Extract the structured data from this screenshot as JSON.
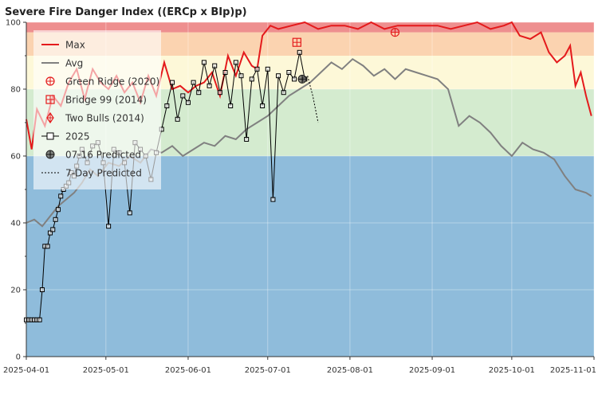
{
  "chart_data": {
    "type": "line",
    "title": "Severe Fire Danger Index ((ERCp x BIp)p)",
    "xlabel": "",
    "ylabel": "",
    "ylim": [
      0,
      100
    ],
    "x_range": [
      "2025-04-01",
      "2025-11-01"
    ],
    "x_ticks": [
      "2025-04-01",
      "2025-05-01",
      "2025-06-01",
      "2025-07-01",
      "2025-08-01",
      "2025-09-01",
      "2025-10-01",
      "2025-11-01"
    ],
    "y_ticks": [
      0,
      20,
      40,
      60,
      80,
      100
    ],
    "grid": true,
    "legend_placement": "top-left",
    "bands": [
      {
        "from": 0,
        "to": 60,
        "color": "#8fbcdb"
      },
      {
        "from": 60,
        "to": 80,
        "color": "#d4ebcf"
      },
      {
        "from": 80,
        "to": 90,
        "color": "#fdf8d8"
      },
      {
        "from": 90,
        "to": 97,
        "color": "#fbd3b0"
      },
      {
        "from": 97,
        "to": 100,
        "color": "#ee8f8f"
      }
    ],
    "legend": [
      "Max",
      "Avg",
      "Green Ridge (2020)",
      "Bridge 99 (2014)",
      "Two Bulls (2014)",
      "2025",
      "07-16 Predicted",
      "7-Day Predicted"
    ],
    "series": [
      {
        "name": "Max",
        "color": "#e41a1c",
        "x": [
          "2025-04-01",
          "2025-04-03",
          "2025-04-05",
          "2025-04-08",
          "2025-04-11",
          "2025-04-14",
          "2025-04-17",
          "2025-04-20",
          "2025-04-23",
          "2025-04-26",
          "2025-04-29",
          "2025-05-02",
          "2025-05-05",
          "2025-05-08",
          "2025-05-11",
          "2025-05-14",
          "2025-05-17",
          "2025-05-20",
          "2025-05-23",
          "2025-05-26",
          "2025-05-29",
          "2025-06-01",
          "2025-06-04",
          "2025-06-07",
          "2025-06-10",
          "2025-06-13",
          "2025-06-16",
          "2025-06-19",
          "2025-06-22",
          "2025-06-25",
          "2025-06-27",
          "2025-06-29",
          "2025-07-02",
          "2025-07-05",
          "2025-07-10",
          "2025-07-15",
          "2025-07-20",
          "2025-07-25",
          "2025-07-30",
          "2025-08-04",
          "2025-08-09",
          "2025-08-14",
          "2025-08-19",
          "2025-08-24",
          "2025-08-29",
          "2025-09-03",
          "2025-09-08",
          "2025-09-13",
          "2025-09-18",
          "2025-09-23",
          "2025-09-28",
          "2025-10-01",
          "2025-10-04",
          "2025-10-08",
          "2025-10-12",
          "2025-10-15",
          "2025-10-18",
          "2025-10-21",
          "2025-10-23",
          "2025-10-25",
          "2025-10-27",
          "2025-10-29",
          "2025-10-31"
        ],
        "values": [
          71,
          62,
          74,
          69,
          78,
          75,
          82,
          86,
          77,
          86,
          82,
          80,
          84,
          79,
          82,
          76,
          84,
          78,
          88,
          80,
          81,
          79,
          81,
          82,
          85,
          78,
          90,
          84,
          91,
          87,
          86,
          96,
          99,
          98,
          99,
          100,
          98,
          99,
          99,
          98,
          100,
          98,
          99,
          99,
          99,
          99,
          98,
          99,
          100,
          98,
          99,
          100,
          96,
          95,
          97,
          91,
          88,
          90,
          93,
          81,
          85,
          78,
          72
        ]
      },
      {
        "name": "Avg",
        "color": "#808080",
        "x": [
          "2025-04-01",
          "2025-04-04",
          "2025-04-07",
          "2025-04-10",
          "2025-04-13",
          "2025-04-16",
          "2025-04-19",
          "2025-04-22",
          "2025-04-25",
          "2025-04-28",
          "2025-05-02",
          "2025-05-06",
          "2025-05-10",
          "2025-05-14",
          "2025-05-18",
          "2025-05-22",
          "2025-05-26",
          "2025-05-30",
          "2025-06-03",
          "2025-06-07",
          "2025-06-11",
          "2025-06-15",
          "2025-06-19",
          "2025-06-23",
          "2025-06-27",
          "2025-07-01",
          "2025-07-05",
          "2025-07-09",
          "2025-07-13",
          "2025-07-17",
          "2025-07-21",
          "2025-07-25",
          "2025-07-29",
          "2025-08-02",
          "2025-08-06",
          "2025-08-10",
          "2025-08-14",
          "2025-08-18",
          "2025-08-22",
          "2025-08-26",
          "2025-08-30",
          "2025-09-03",
          "2025-09-07",
          "2025-09-11",
          "2025-09-15",
          "2025-09-19",
          "2025-09-23",
          "2025-09-27",
          "2025-10-01",
          "2025-10-05",
          "2025-10-09",
          "2025-10-13",
          "2025-10-17",
          "2025-10-21",
          "2025-10-25",
          "2025-10-29",
          "2025-10-31"
        ],
        "values": [
          40,
          41,
          39,
          42,
          45,
          47,
          49,
          52,
          56,
          54,
          58,
          57,
          60,
          58,
          62,
          61,
          63,
          60,
          62,
          64,
          63,
          66,
          65,
          68,
          70,
          72,
          75,
          78,
          80,
          82,
          85,
          88,
          86,
          89,
          87,
          84,
          86,
          83,
          86,
          85,
          84,
          83,
          80,
          69,
          72,
          70,
          67,
          63,
          60,
          64,
          62,
          61,
          59,
          54,
          50,
          49,
          48
        ]
      },
      {
        "name": "Green Ridge (2020)",
        "color": "#e41a1c",
        "x": [
          "2025-08-18"
        ],
        "values": [
          97
        ]
      },
      {
        "name": "Bridge 99 (2014)",
        "color": "#e41a1c",
        "x": [
          "2025-07-12"
        ],
        "values": [
          94
        ]
      },
      {
        "name": "Two Bulls (2014)",
        "color": "#e41a1c",
        "x": [],
        "values": []
      },
      {
        "name": "2025",
        "color": "#000000",
        "x": [
          "2025-04-01",
          "2025-04-02",
          "2025-04-03",
          "2025-04-04",
          "2025-04-05",
          "2025-04-06",
          "2025-04-07",
          "2025-04-08",
          "2025-04-09",
          "2025-04-10",
          "2025-04-11",
          "2025-04-12",
          "2025-04-13",
          "2025-04-14",
          "2025-04-15",
          "2025-04-16",
          "2025-04-17",
          "2025-04-18",
          "2025-04-19",
          "2025-04-20",
          "2025-04-21",
          "2025-04-22",
          "2025-04-24",
          "2025-04-26",
          "2025-04-28",
          "2025-04-30",
          "2025-05-02",
          "2025-05-04",
          "2025-05-06",
          "2025-05-08",
          "2025-05-10",
          "2025-05-12",
          "2025-05-14",
          "2025-05-16",
          "2025-05-18",
          "2025-05-20",
          "2025-05-22",
          "2025-05-24",
          "2025-05-26",
          "2025-05-28",
          "2025-05-30",
          "2025-06-01",
          "2025-06-03",
          "2025-06-05",
          "2025-06-07",
          "2025-06-09",
          "2025-06-11",
          "2025-06-13",
          "2025-06-15",
          "2025-06-17",
          "2025-06-19",
          "2025-06-21",
          "2025-06-23",
          "2025-06-25",
          "2025-06-27",
          "2025-06-29",
          "2025-07-01",
          "2025-07-03",
          "2025-07-05",
          "2025-07-07",
          "2025-07-09",
          "2025-07-11",
          "2025-07-13",
          "2025-07-15"
        ],
        "values": [
          11,
          11,
          11,
          11,
          11,
          11,
          20,
          33,
          33,
          37,
          38,
          41,
          44,
          48,
          50,
          51,
          52,
          55,
          54,
          57,
          60,
          62,
          58,
          63,
          64,
          58,
          39,
          62,
          61,
          58,
          43,
          64,
          62,
          60,
          53,
          61,
          68,
          75,
          82,
          71,
          78,
          76,
          82,
          79,
          88,
          81,
          87,
          79,
          85,
          75,
          88,
          84,
          65,
          83,
          86,
          75,
          86,
          47,
          84,
          79,
          85,
          83,
          91,
          83
        ]
      },
      {
        "name": "07-16 Predicted",
        "color": "#333333",
        "x": [
          "2025-07-14"
        ],
        "values": [
          83
        ]
      },
      {
        "name": "7-Day Predicted",
        "color": "#000000",
        "x": [
          "2025-07-14",
          "2025-07-16",
          "2025-07-18",
          "2025-07-20"
        ],
        "values": [
          83,
          84,
          78,
          70
        ]
      }
    ]
  }
}
